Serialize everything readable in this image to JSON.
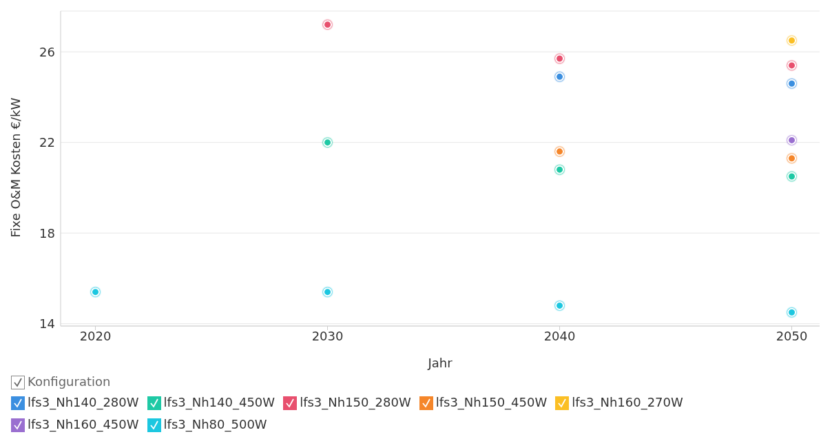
{
  "chart_data": {
    "type": "scatter",
    "xlabel": "Jahr",
    "ylabel": "Fixe O&M Kosten €/kW",
    "legend_title": "Konfiguration",
    "categories": [
      "2020",
      "2030",
      "2040",
      "2050"
    ],
    "series": [
      {
        "name": "lfs3_Nh140_280W",
        "color": "#3b8fe0",
        "values": [
          null,
          null,
          24.9,
          24.6
        ]
      },
      {
        "name": "lfs3_Nh140_450W",
        "color": "#1fc9a5",
        "values": [
          null,
          22.0,
          20.8,
          20.5
        ]
      },
      {
        "name": "lfs3_Nh150_280W",
        "color": "#e8506e",
        "values": [
          null,
          27.2,
          25.7,
          25.4
        ]
      },
      {
        "name": "lfs3_Nh150_450W",
        "color": "#f5862a",
        "values": [
          null,
          null,
          21.6,
          21.3
        ]
      },
      {
        "name": "lfs3_Nh160_270W",
        "color": "#fbbf24",
        "values": [
          null,
          null,
          null,
          26.5
        ]
      },
      {
        "name": "lfs3_Nh160_450W",
        "color": "#9a6fd0",
        "values": [
          null,
          null,
          null,
          22.1
        ]
      },
      {
        "name": "lfs3_Nh80_500W",
        "color": "#1cc7e0",
        "values": [
          15.4,
          15.4,
          14.8,
          14.5
        ]
      }
    ],
    "ylim": [
      13.9,
      27.8
    ],
    "yticks": [
      14,
      18,
      22,
      26
    ],
    "grid": "y",
    "legend": "bottom",
    "marker": "circle"
  }
}
